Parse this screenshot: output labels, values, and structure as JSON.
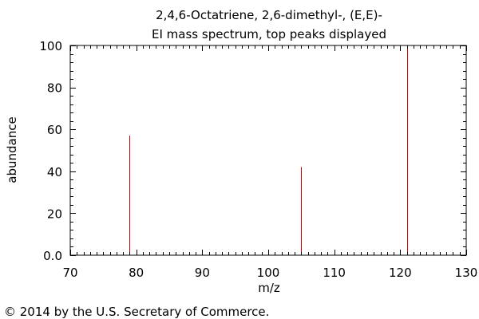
{
  "chart_data": {
    "type": "bar",
    "title": "2,4,6-Octatriene, 2,6-dimethyl-, (E,E)-",
    "subtitle": "EI mass spectrum, top peaks displayed",
    "xlabel": "m/z",
    "ylabel": "abundance",
    "xlim": [
      70,
      130
    ],
    "ylim": [
      0,
      100
    ],
    "x_ticks": [
      70,
      80,
      90,
      100,
      110,
      120,
      130
    ],
    "y_ticks": [
      "0.0",
      "20",
      "40",
      "60",
      "80",
      "100"
    ],
    "peaks": [
      {
        "x": 79,
        "y": 57
      },
      {
        "x": 105,
        "y": 42
      },
      {
        "x": 121,
        "y": 100
      }
    ],
    "peak_color": "#cc0000",
    "axis_color": "#000000",
    "grid": false
  },
  "footer": {
    "copyright": "© 2014 by the U.S. Secretary of Commerce."
  }
}
